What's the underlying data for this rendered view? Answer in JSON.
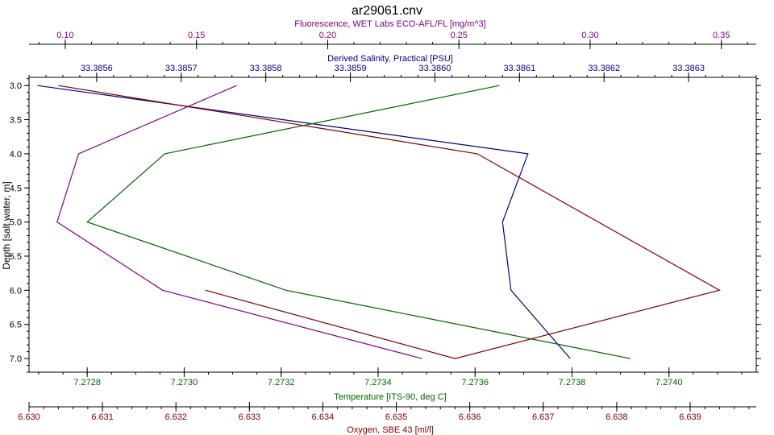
{
  "chart_data": {
    "type": "line",
    "title": "ar29061.cnv",
    "ylabel": "Depth [salt water, m]",
    "y": {
      "ylim": [
        2.88,
        7.2
      ],
      "inverted": true,
      "ticks": [
        "3.0",
        "3.5",
        "4.0",
        "4.5",
        "5.0",
        "5.5",
        "6.0",
        "6.5",
        "7.0"
      ],
      "tick_values": [
        3.0,
        3.5,
        4.0,
        4.5,
        5.0,
        5.5,
        6.0,
        6.5,
        7.0
      ]
    },
    "axes": [
      {
        "id": "fluor",
        "position": "top-outer",
        "label": "Fluorescence, WET Labs ECO-AFL/FL [mg/m^3]",
        "color": "#800080",
        "range": [
          0.0862,
          0.3633
        ],
        "ticks": [
          "0.10",
          "0.15",
          "0.20",
          "0.25",
          "0.30",
          "0.35"
        ],
        "tick_values": [
          0.1,
          0.15,
          0.2,
          0.25,
          0.3,
          0.35
        ],
        "minor_step": 0.01
      },
      {
        "id": "sal",
        "position": "top-inner",
        "label": "Derived Salinity, Practical [PSU]",
        "color": "#000080",
        "range": [
          33.38552,
          33.38638
        ],
        "ticks": [
          "33.3856",
          "33.3857",
          "33.3858",
          "33.3859",
          "33.3860",
          "33.3861",
          "33.3862",
          "33.3863"
        ],
        "tick_values": [
          33.3856,
          33.3857,
          33.3858,
          33.3859,
          33.386,
          33.3861,
          33.3862,
          33.3863
        ],
        "minor_step": 2e-05
      },
      {
        "id": "temp",
        "position": "bottom-inner",
        "label": "Temperature [ITS-90, deg C]",
        "color": "#006400",
        "range": [
          7.27268,
          7.27418
        ],
        "ticks": [
          "7.2728",
          "7.2730",
          "7.2732",
          "7.2734",
          "7.2736",
          "7.2738",
          "7.2740"
        ],
        "tick_values": [
          7.2728,
          7.273,
          7.2732,
          7.2734,
          7.2736,
          7.2738,
          7.274
        ],
        "minor_step": 5e-05
      },
      {
        "id": "oxy",
        "position": "bottom-outer",
        "label": "Oxygen, SBE 43 [ml/l]",
        "color": "#800000",
        "range": [
          6.63,
          6.6399
        ],
        "ticks": [
          "6.630",
          "6.631",
          "6.632",
          "6.633",
          "6.634",
          "6.635",
          "6.636",
          "6.637",
          "6.638",
          "6.639"
        ],
        "tick_values": [
          6.63,
          6.631,
          6.632,
          6.633,
          6.634,
          6.635,
          6.636,
          6.637,
          6.638,
          6.639
        ],
        "minor_step": 0.0002
      }
    ],
    "series": [
      {
        "axis": "fluor",
        "color": "#800080",
        "points": [
          [
            0.1653,
            3.0
          ],
          [
            0.1051,
            4.0
          ],
          [
            0.0969,
            5.0
          ],
          [
            0.1371,
            6.0
          ],
          [
            0.2359,
            7.0
          ]
        ]
      },
      {
        "axis": "sal",
        "color": "#000080",
        "points": [
          [
            33.38553,
            3.0
          ],
          [
            33.38611,
            4.0
          ],
          [
            33.38608,
            5.0
          ],
          [
            33.38609,
            6.0
          ],
          [
            33.38616,
            7.0
          ]
        ]
      },
      {
        "axis": "temp",
        "color": "#006400",
        "points": [
          [
            7.27365,
            3.0
          ],
          [
            7.27296,
            4.0
          ],
          [
            7.2728,
            5.0
          ],
          [
            7.27321,
            6.0
          ],
          [
            7.27392,
            7.0
          ]
        ]
      },
      {
        "axis": "oxy",
        "color": "#800000",
        "points": [
          [
            6.6304,
            3.0
          ],
          [
            6.6361,
            4.0
          ],
          [
            6.6394,
            6.0
          ],
          [
            6.6358,
            7.0
          ],
          [
            6.6324,
            6.0
          ]
        ]
      }
    ],
    "grid": false
  }
}
